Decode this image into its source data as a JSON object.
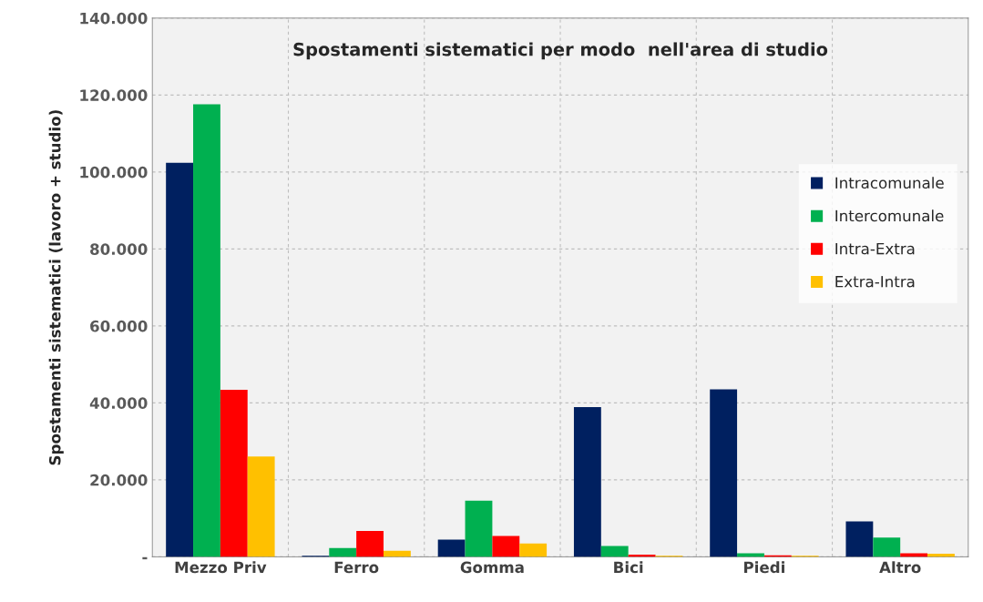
{
  "chart_data": {
    "type": "bar",
    "title": "Spostamenti sistematici per modo  nell'area di studio",
    "ylabel": "Spostamenti sistematici (lavoro + studio)",
    "categories": [
      "Mezzo Priv",
      "Ferro",
      "Gomma",
      "Bici",
      "Piedi",
      "Altro"
    ],
    "series": [
      {
        "name": "Intracomunale",
        "color": "#002060",
        "values": [
          102400,
          300,
          4500,
          38900,
          43500,
          9200
        ]
      },
      {
        "name": "Intercomunale",
        "color": "#00b050",
        "values": [
          117600,
          2300,
          14600,
          2800,
          900,
          5000
        ]
      },
      {
        "name": "Intra-Extra",
        "color": "#ff0000",
        "values": [
          43400,
          6700,
          5400,
          600,
          400,
          900
        ]
      },
      {
        "name": "Extra-Intra",
        "color": "#ffc000",
        "values": [
          26100,
          1600,
          3500,
          300,
          300,
          800
        ]
      }
    ],
    "ylim": [
      0,
      140000
    ],
    "yticks": [
      {
        "value": 0,
        "label": "-"
      },
      {
        "value": 20000,
        "label": "20.000"
      },
      {
        "value": 40000,
        "label": "40.000"
      },
      {
        "value": 60000,
        "label": "60.000"
      },
      {
        "value": 80000,
        "label": "80.000"
      },
      {
        "value": 100000,
        "label": "100.000"
      },
      {
        "value": 120000,
        "label": "120.000"
      },
      {
        "value": 140000,
        "label": "140.000"
      }
    ],
    "grid": true,
    "legend": "right"
  }
}
